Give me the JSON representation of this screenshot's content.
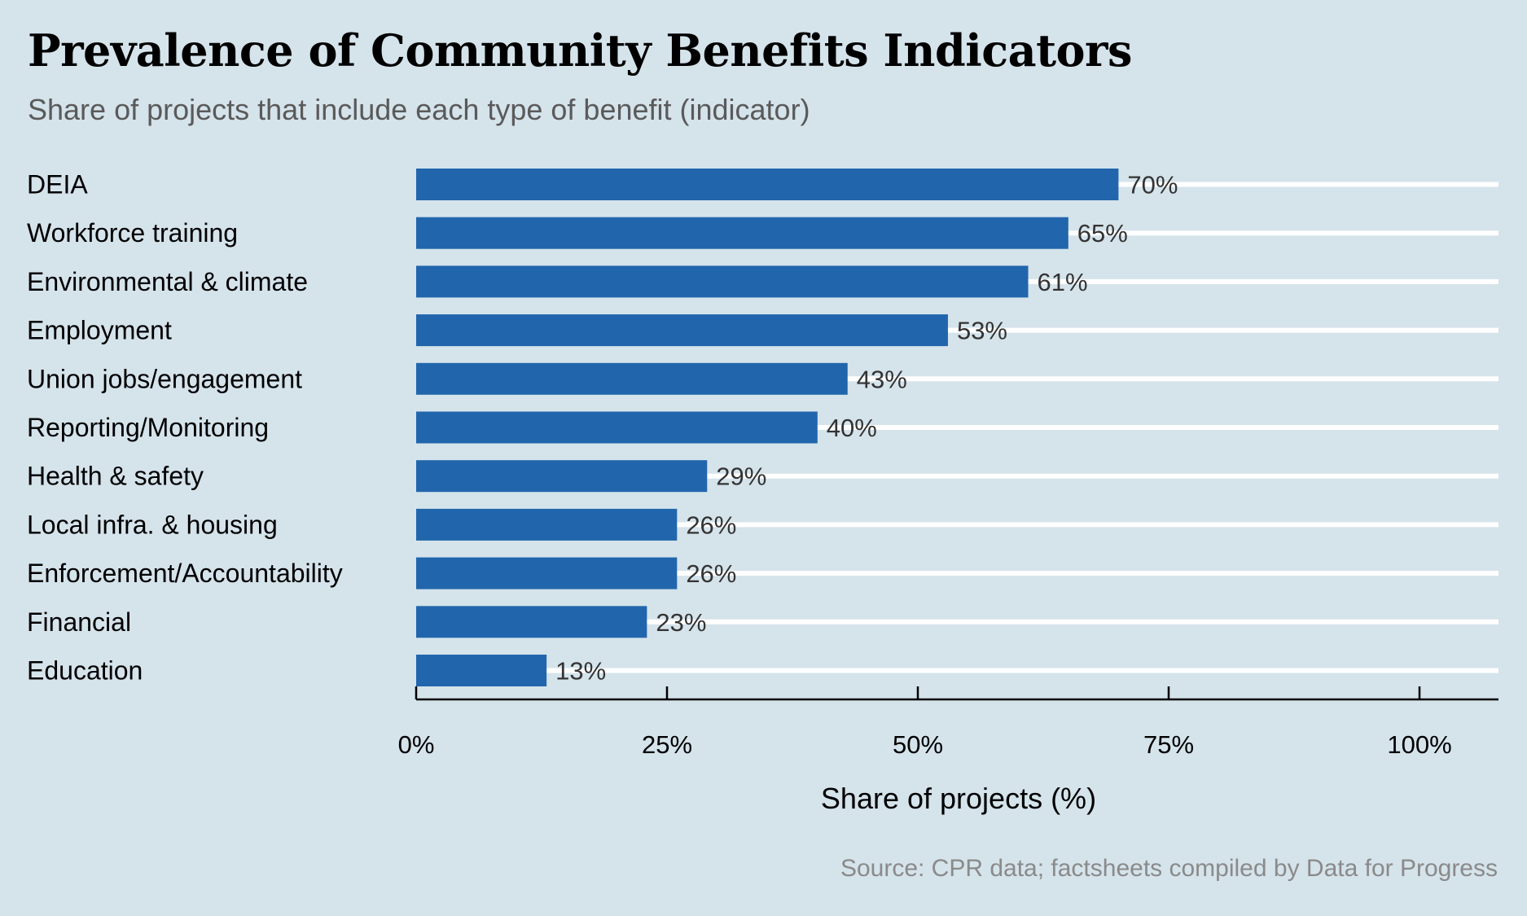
{
  "title": "Prevalence of Community Benefits Indicators",
  "subtitle": "Share of projects that include each type of benefit (indicator)",
  "source": "Source: CPR data; factsheets compiled by Data for Progress",
  "colors": {
    "background": "#d5e3eb",
    "bar": "#2166ac",
    "gridline": "#ffffff",
    "axis": "#000000",
    "value_label": "#333333",
    "category_label": "#000000"
  },
  "chart_data": {
    "type": "bar",
    "orientation": "horizontal",
    "title": "Prevalence of Community Benefits Indicators",
    "subtitle": "Share of projects that include each type of benefit (indicator)",
    "categories": [
      "DEIA",
      "Workforce training",
      "Environmental & climate",
      "Employment",
      "Union jobs/engagement",
      "Reporting/Monitoring",
      "Health & safety",
      "Local infra. & housing",
      "Enforcement/Accountability",
      "Financial",
      "Education"
    ],
    "values": [
      70,
      65,
      61,
      53,
      43,
      40,
      29,
      26,
      26,
      23,
      13
    ],
    "value_labels": [
      "70%",
      "65%",
      "61%",
      "53%",
      "43%",
      "40%",
      "29%",
      "26%",
      "26%",
      "23%",
      "13%"
    ],
    "xlabel": "Share of projects (%)",
    "ylabel": "",
    "xlim": [
      0,
      108
    ],
    "xticks": [
      0,
      25,
      50,
      75,
      100
    ],
    "xtick_labels": [
      "0%",
      "25%",
      "50%",
      "75%",
      "100%"
    ],
    "grid": "horizontal lines per category",
    "legend": "none",
    "source": "Source: CPR data; factsheets compiled by Data for Progress"
  }
}
